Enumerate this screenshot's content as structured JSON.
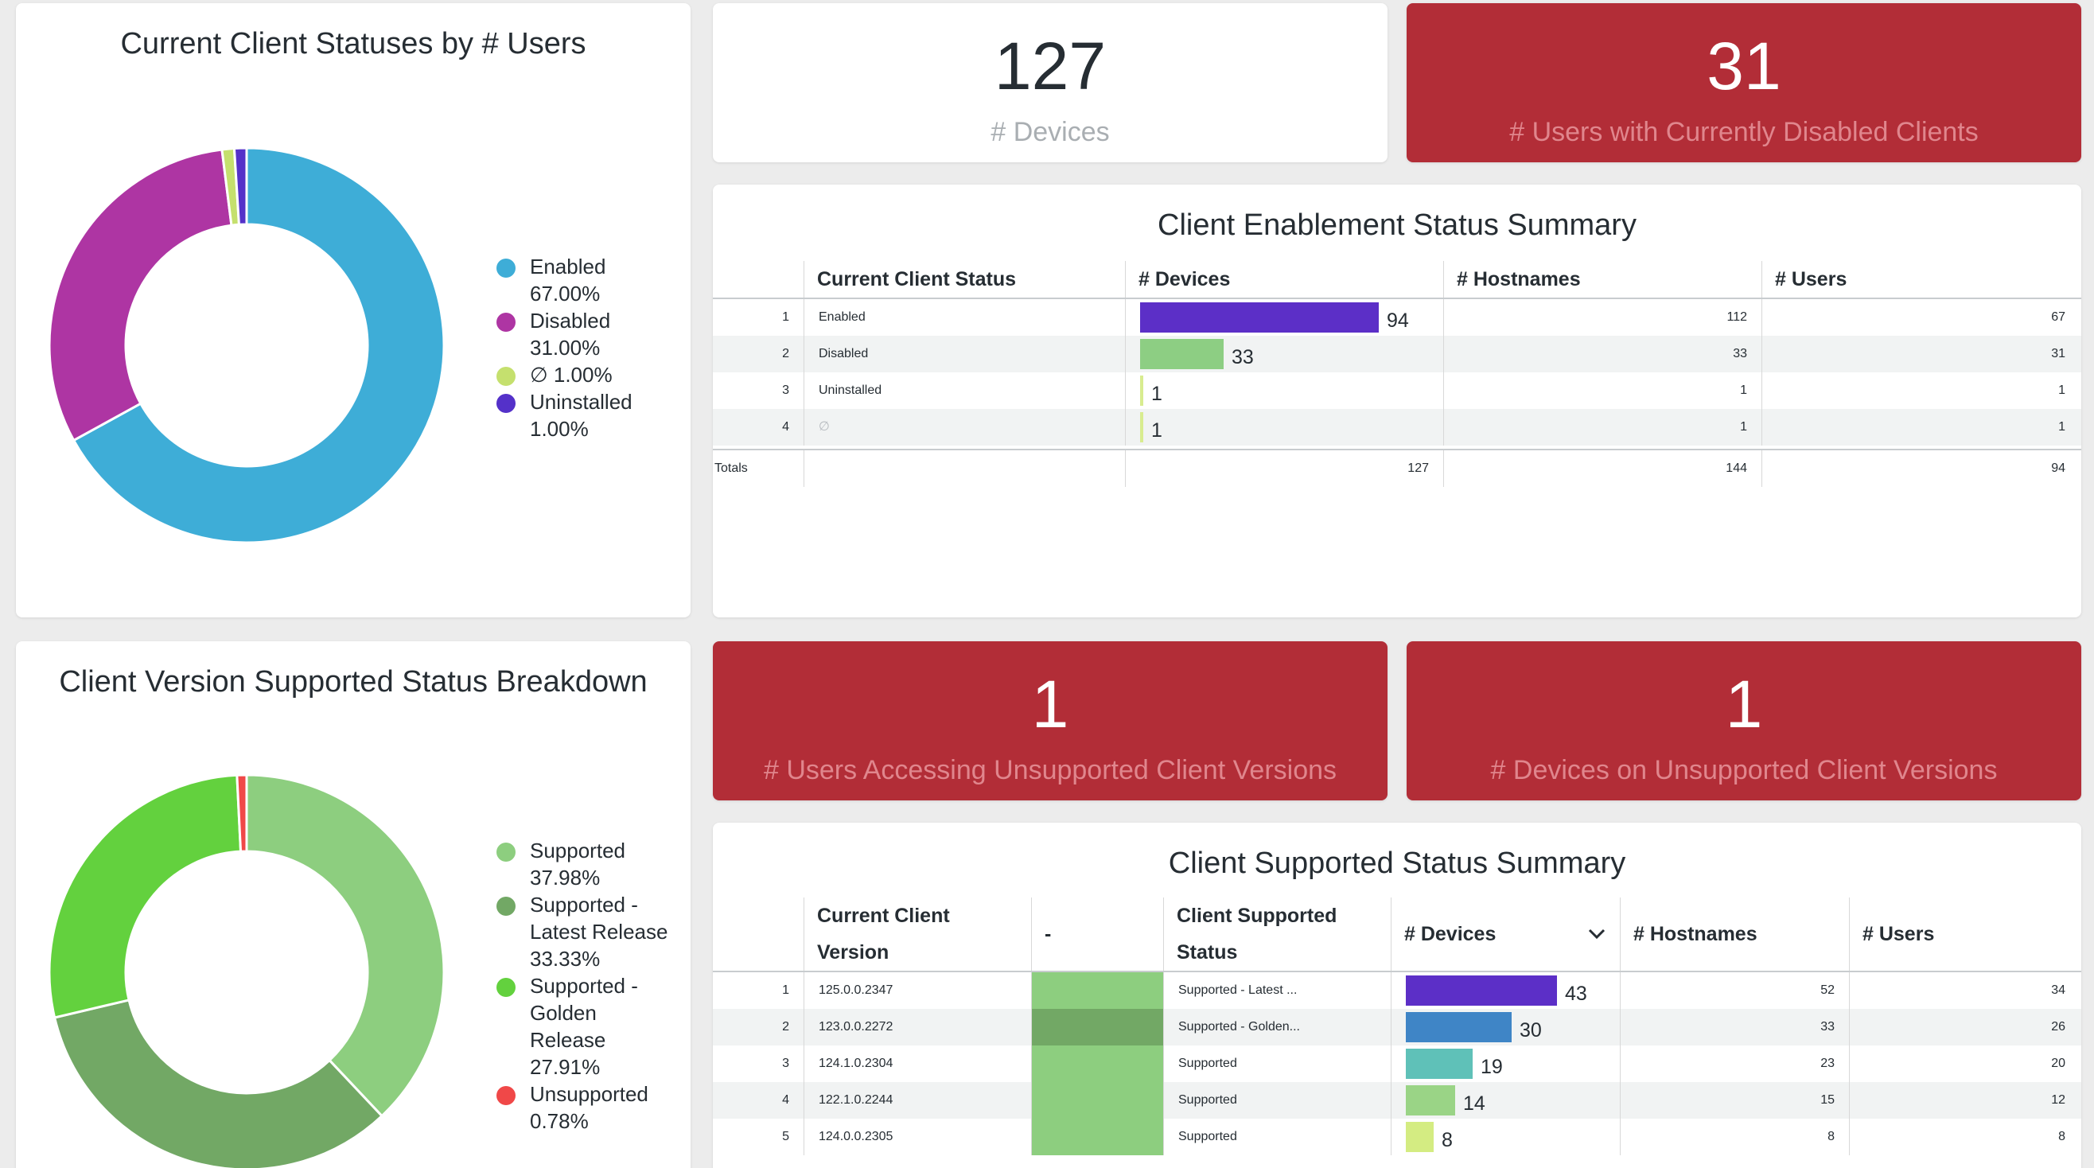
{
  "tile_statuses": {
    "title": "Current Client Statuses by # Users",
    "legend": [
      {
        "name": "Enabled",
        "pct": "67.00%",
        "color": "#3eadd7",
        "value": 67
      },
      {
        "name": "Disabled",
        "pct": "31.00%",
        "color": "#ae35a3",
        "value": 31
      },
      {
        "name": "∅",
        "pct": "1.00%",
        "color": "#c5e06e",
        "value": 1
      },
      {
        "name": "Uninstalled",
        "pct": "1.00%",
        "color": "#5431c9",
        "value": 1
      }
    ]
  },
  "kpi_devices": {
    "value": "127",
    "label": "# Devices"
  },
  "kpi_disabled_users": {
    "value": "31",
    "label": "# Users with Currently Disabled Clients"
  },
  "kpi_unsupported_users": {
    "value": "1",
    "label": "# Users Accessing Unsupported Client Versions"
  },
  "kpi_unsupported_devices": {
    "value": "1",
    "label": "# Devices on Unsupported Client Versions"
  },
  "enablement": {
    "title": "Client Enablement Status Summary",
    "headers": {
      "status": "Current Client Status",
      "devices": "# Devices",
      "hostnames": "# Hostnames",
      "users": "# Users"
    },
    "rows": [
      {
        "idx": "1",
        "status": "Enabled",
        "devices": "94",
        "hostnames": "112",
        "users": "67",
        "bar_color": "#5c2fc7",
        "bar_value": 94
      },
      {
        "idx": "2",
        "status": "Disabled",
        "devices": "33",
        "hostnames": "33",
        "users": "31",
        "bar_color": "#8dce83",
        "bar_value": 33
      },
      {
        "idx": "3",
        "status": "Uninstalled",
        "devices": "1",
        "hostnames": "1",
        "users": "1",
        "bar_color": "#d8ec8f",
        "bar_value": 1
      },
      {
        "idx": "4",
        "status": "∅",
        "devices": "1",
        "hostnames": "1",
        "users": "1",
        "bar_color": "#d8ec8f",
        "bar_value": 1
      }
    ],
    "totals": {
      "label": "Totals",
      "devices": "127",
      "hostnames": "144",
      "users": "94"
    }
  },
  "tile_versions": {
    "title": "Client Version Supported Status Breakdown",
    "legend": [
      {
        "name": "Supported",
        "pct": "37.98%",
        "color": "#8dce7f",
        "value": 37.98,
        "lines": [
          "Supported"
        ]
      },
      {
        "name": "Supported - Latest Release",
        "pct": "33.33%",
        "color": "#72a865",
        "value": 33.33,
        "lines": [
          "Supported -",
          "Latest Release"
        ]
      },
      {
        "name": "Supported - Golden Release",
        "pct": "27.91%",
        "color": "#63d13e",
        "value": 27.91,
        "lines": [
          "Supported -",
          "Golden",
          "Release"
        ]
      },
      {
        "name": "Unsupported",
        "pct": "0.78%",
        "color": "#f04848",
        "value": 0.78,
        "lines": [
          "Unsupported"
        ]
      }
    ]
  },
  "supported": {
    "title": "Client Supported Status Summary",
    "headers": {
      "version": [
        "Current Client",
        "Version"
      ],
      "dash": "-",
      "status": [
        "Client Supported",
        "Status"
      ],
      "devices": "# Devices",
      "hostnames": "# Hostnames",
      "users": "# Users"
    },
    "rows": [
      {
        "idx": "1",
        "version": "125.0.0.2347",
        "status": "Supported - Latest ...",
        "devices": "43",
        "hostnames": "52",
        "users": "34",
        "swatch": "#8dce7f",
        "bar_color": "#5c2fc7",
        "bar_value": 43
      },
      {
        "idx": "2",
        "version": "123.0.0.2272",
        "status": "Supported - Golden...",
        "devices": "30",
        "hostnames": "33",
        "users": "26",
        "swatch": "#72a865",
        "bar_color": "#3f85c6",
        "bar_value": 30
      },
      {
        "idx": "3",
        "version": "124.1.0.2304",
        "status": "Supported",
        "devices": "19",
        "hostnames": "23",
        "users": "20",
        "swatch": "#8dce7f",
        "bar_color": "#5fc1b8",
        "bar_value": 19
      },
      {
        "idx": "4",
        "version": "122.1.0.2244",
        "status": "Supported",
        "devices": "14",
        "hostnames": "15",
        "users": "12",
        "swatch": "#8dce7f",
        "bar_color": "#9ad486",
        "bar_value": 14
      },
      {
        "idx": "5",
        "version": "124.0.0.2305",
        "status": "Supported",
        "devices": "8",
        "hostnames": "8",
        "users": "8",
        "swatch": "#8dce7f",
        "bar_color": "#d4ec82",
        "bar_value": 8
      }
    ]
  }
}
